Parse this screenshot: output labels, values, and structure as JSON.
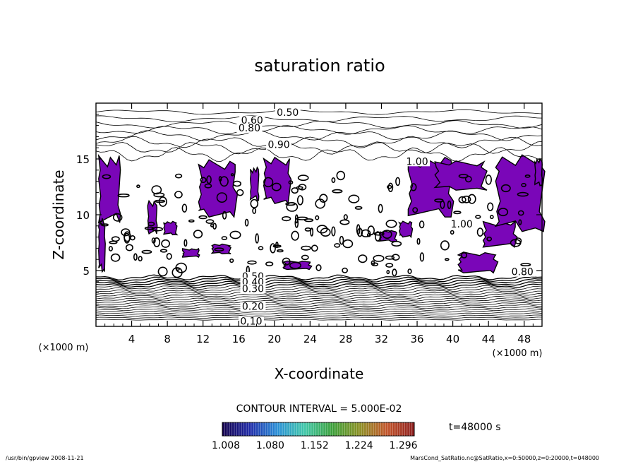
{
  "chart_data": {
    "type": "contour",
    "title": "saturation ratio",
    "xlabel": "X-coordinate",
    "ylabel": "Z-coordinate",
    "x_unit": "(×1000 m)",
    "y_unit": "(×1000 m)",
    "xlim": [
      0,
      50
    ],
    "ylim": [
      0,
      20
    ],
    "x_ticks": [
      4,
      8,
      12,
      16,
      20,
      24,
      28,
      32,
      36,
      40,
      44,
      48
    ],
    "y_ticks": [
      5,
      10,
      15
    ],
    "contour_interval_text": "CONTOUR INTERVAL = 5.000E-02",
    "contour_labels": [
      {
        "text": "0.50",
        "x": 21.5,
        "z": 19.0
      },
      {
        "text": "0.60",
        "x": 17.5,
        "z": 18.3
      },
      {
        "text": "0.80",
        "x": 17.2,
        "z": 17.6
      },
      {
        "text": "0.90",
        "x": 20.5,
        "z": 16.1
      },
      {
        "text": "1.00",
        "x": 36.0,
        "z": 14.6
      },
      {
        "text": "1.00",
        "x": 41.0,
        "z": 9.0
      },
      {
        "text": "0.80",
        "x": 47.8,
        "z": 4.7
      },
      {
        "text": "0.50",
        "x": 17.6,
        "z": 4.3
      },
      {
        "text": "0.40",
        "x": 17.6,
        "z": 3.8
      },
      {
        "text": "0.30",
        "x": 17.6,
        "z": 3.2
      },
      {
        "text": "0.20",
        "x": 17.6,
        "z": 1.6
      },
      {
        "text": "0.10",
        "x": 17.4,
        "z": 0.3
      }
    ],
    "fill_threshold": 1.0,
    "fill_color": "#7a06b8",
    "fill_regions": [
      {
        "x0": 0.3,
        "x1": 2.6,
        "z0": 9.3,
        "z1": 14.8
      },
      {
        "x0": 0.3,
        "x1": 1.0,
        "z0": 4.9,
        "z1": 9.3
      },
      {
        "x0": 5.8,
        "x1": 6.8,
        "z0": 8.3,
        "z1": 11.0
      },
      {
        "x0": 7.6,
        "x1": 9.0,
        "z0": 8.2,
        "z1": 9.3
      },
      {
        "x0": 11.5,
        "x1": 15.6,
        "z0": 9.8,
        "z1": 14.5
      },
      {
        "x0": 17.3,
        "x1": 18.2,
        "z0": 11.3,
        "z1": 14.0
      },
      {
        "x0": 18.8,
        "x1": 21.7,
        "z0": 11.0,
        "z1": 14.8
      },
      {
        "x0": 9.7,
        "x1": 11.5,
        "z0": 6.2,
        "z1": 6.9
      },
      {
        "x0": 13.0,
        "x1": 15.0,
        "z0": 6.5,
        "z1": 7.3
      },
      {
        "x0": 21.0,
        "x1": 24.0,
        "z0": 5.1,
        "z1": 5.8
      },
      {
        "x0": 31.8,
        "x1": 33.6,
        "z0": 7.6,
        "z1": 8.5
      },
      {
        "x0": 34.0,
        "x1": 35.4,
        "z0": 8.0,
        "z1": 9.3
      },
      {
        "x0": 35.0,
        "x1": 39.8,
        "z0": 9.8,
        "z1": 14.7
      },
      {
        "x0": 38.0,
        "x1": 43.5,
        "z0": 12.2,
        "z1": 14.6
      },
      {
        "x0": 43.4,
        "x1": 47.0,
        "z0": 7.1,
        "z1": 9.2
      },
      {
        "x0": 44.8,
        "x1": 50.0,
        "z0": 8.5,
        "z1": 14.8
      },
      {
        "x0": 40.6,
        "x1": 44.8,
        "z0": 4.8,
        "z1": 6.5
      },
      {
        "x0": 49.2,
        "x1": 50.0,
        "z0": 12.6,
        "z1": 14.8
      }
    ],
    "colorbar": {
      "labels": [
        "1.008",
        "1.080",
        "1.152",
        "1.224",
        "1.296"
      ],
      "colors": [
        "#12004a",
        "#1f2aa8",
        "#2a8fd6",
        "#3fc7a8",
        "#3a9f3a",
        "#8a8f22",
        "#c2542a",
        "#8b1c1c"
      ]
    },
    "time_label": "t=48000 s"
  },
  "footer": {
    "left": "/usr/bin/gpview  2008-11-21",
    "right": "MarsCond_SatRatio.nc@SatRatio,x=0:50000,z=0:20000,t=048000"
  }
}
